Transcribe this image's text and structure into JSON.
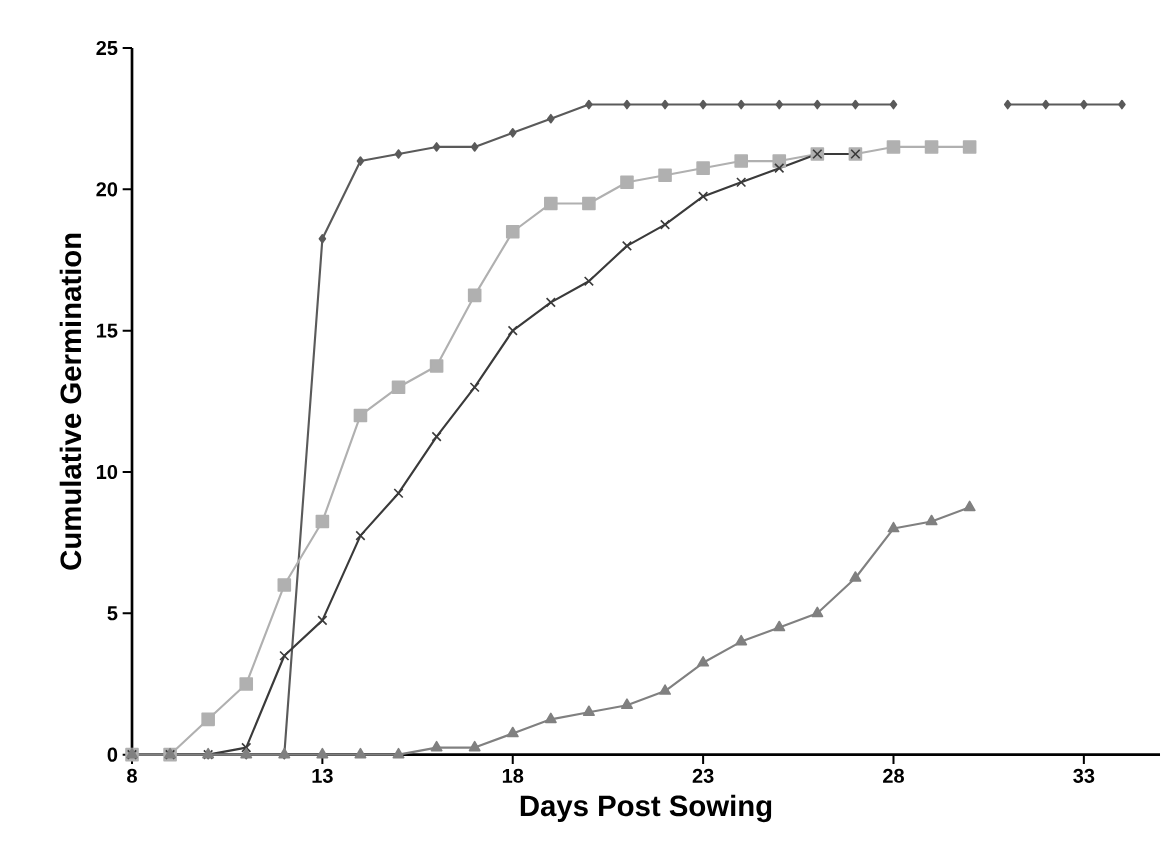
{
  "chart_data": {
    "type": "line",
    "xlabel": "Days Post Sowing",
    "ylabel": "Cumulative Germination",
    "x": [
      8,
      9,
      10,
      11,
      12,
      13,
      14,
      15,
      16,
      17,
      18,
      19,
      20,
      21,
      22,
      23,
      24,
      25,
      26,
      27,
      28,
      29,
      30,
      31,
      32,
      33,
      34
    ],
    "xlim": [
      8,
      35
    ],
    "xticks": [
      8,
      13,
      18,
      23,
      28,
      33
    ],
    "ylim": [
      0,
      25
    ],
    "yticks": [
      0,
      5,
      10,
      15,
      20,
      25
    ],
    "series": [
      {
        "color": "#5a5a5a",
        "marker": "diamond",
        "values": [
          0,
          0,
          0,
          0,
          0,
          18.25,
          21,
          21.25,
          21.5,
          21.5,
          22,
          22.5,
          23,
          23,
          23,
          23,
          23,
          23,
          23,
          23,
          23,
          null,
          null,
          23,
          23,
          23,
          23
        ]
      },
      {
        "color": "#b0b0b0",
        "marker": "square",
        "values": [
          0,
          0,
          1.25,
          2.5,
          6,
          8.25,
          12,
          13,
          13.75,
          16.25,
          18.5,
          19.5,
          19.5,
          20.25,
          20.5,
          20.75,
          21,
          21,
          21.25,
          21.25,
          21.5,
          21.5,
          21.5,
          null,
          null,
          null,
          null
        ]
      },
      {
        "color": "#3a3a3a",
        "marker": "cross",
        "values": [
          0,
          0,
          0,
          0.25,
          3.5,
          4.75,
          7.75,
          9.25,
          11.25,
          13,
          15,
          16,
          16.75,
          18,
          18.75,
          19.75,
          20.25,
          20.75,
          21.25,
          21.25,
          null,
          null,
          null,
          null,
          null,
          null,
          null
        ]
      },
      {
        "color": "#808080",
        "marker": "triangle",
        "values": [
          0,
          0,
          0,
          0,
          0,
          0,
          0,
          0,
          0.25,
          0.25,
          0.75,
          1.25,
          1.5,
          1.75,
          2.25,
          3.25,
          4,
          4.5,
          5,
          6.25,
          8,
          8.25,
          8.75,
          null,
          null,
          null,
          null
        ]
      }
    ]
  }
}
